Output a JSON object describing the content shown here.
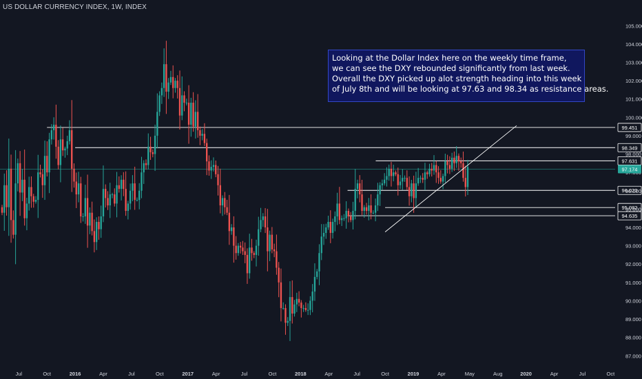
{
  "title": "US DOLLAR CURRENCY INDEX, 1W, INDEX",
  "colors": {
    "background": "#131722",
    "up": "#26a69a",
    "down": "#ef5350",
    "text": "#d1d4dc",
    "horizontal_line": "#ffffff",
    "current_price_line": "#26a69a",
    "annotation_bg": "#10175e",
    "annotation_border": "#3348c8"
  },
  "annotation": {
    "lines": [
      "Looking at the Dollar Index here on the weekly time frame,",
      "we can see the DXY rebounded significantly from last week.",
      "Overall the DXY picked up alot strength heading into this week",
      "of July 8th and will be looking at 97.63 and 98.34 as resistance areas."
    ]
  },
  "chart_data": {
    "type": "candlestick",
    "title": "US DOLLAR CURRENCY INDEX, 1W, INDEX",
    "ylim": [
      86.8,
      105.6
    ],
    "y_ticks": [
      "87.000",
      "88.000",
      "89.000",
      "90.000",
      "91.000",
      "92.000",
      "93.000",
      "94.000",
      "95.000",
      "96.000",
      "97.000",
      "98.000",
      "99.000",
      "100.000",
      "101.000",
      "102.000",
      "103.000",
      "104.000",
      "105.000"
    ],
    "x_ticks": [
      "Jul",
      "Oct",
      "2016",
      "Apr",
      "Jul",
      "Oct",
      "2017",
      "Apr",
      "Jul",
      "Oct",
      "2018",
      "Apr",
      "Jul",
      "Oct",
      "2019",
      "Apr",
      "May",
      "Aug",
      "2020",
      "Apr",
      "Jul",
      "Oct"
    ],
    "x_range": [
      "2015-05",
      "2020-11"
    ],
    "horizontal_levels": [
      {
        "label": "99.451",
        "value": 99.451,
        "from": "2015-10"
      },
      {
        "label": "98.349",
        "value": 98.349,
        "from": "2016-01"
      },
      {
        "label": "97.631",
        "value": 97.631,
        "from": "2018-09"
      },
      {
        "label": "96.020",
        "value": 96.02,
        "from": "2018-06"
      },
      {
        "label": "95.082",
        "value": 95.082,
        "from": "2018-10"
      },
      {
        "label": "94.635",
        "value": 94.635,
        "from": "2018-06"
      }
    ],
    "current_price": {
      "label": "97.174",
      "value": 97.174
    },
    "trendline": {
      "from": [
        "2018-10",
        93.75
      ],
      "to": [
        "2019-12",
        99.55
      ]
    },
    "ohlc_closes": [
      94.8,
      96.3,
      95.1,
      97.2,
      94.4,
      93.6,
      96.4,
      97.5,
      95.9,
      96.6,
      94.5,
      95.3,
      96.2,
      95.7,
      95.4,
      95.5,
      97.0,
      96.9,
      96.3,
      97.9,
      97.0,
      98.8,
      99.3,
      99.6,
      98.4,
      97.4,
      98.8,
      98.2,
      98.3,
      98.7,
      99.3,
      97.2,
      96.5,
      95.8,
      96.4,
      94.6,
      94.6,
      95.6,
      94.1,
      94.8,
      93.8,
      93.2,
      94.3,
      93.9,
      94.6,
      96.1,
      95.6,
      95.2,
      95.8,
      95.8,
      95.3,
      96.3,
      96.1,
      96.6,
      96.1,
      94.9,
      95.3,
      96.0,
      96.4,
      95.5,
      95.5,
      96.0,
      97.0,
      97.5,
      97.4,
      98.4,
      98.1,
      98.0,
      99.0,
      100.3,
      101.2,
      101.6,
      102.9,
      101.4,
      101.9,
      102.2,
      101.6,
      102.0,
      101.6,
      100.1,
      101.2,
      100.8,
      100.8,
      99.6,
      100.8,
      99.5,
      100.3,
      99.3,
      99.0,
      99.1,
      98.6,
      97.6,
      97.1,
      97.3,
      97.4,
      96.9,
      96.3,
      95.2,
      95.6,
      95.1,
      94.8,
      93.8,
      94.0,
      93.0,
      92.6,
      93.0,
      92.9,
      92.7,
      92.5,
      91.5,
      92.9,
      92.6,
      92.5,
      93.0,
      93.9,
      94.4,
      94.6,
      94.0,
      92.7,
      93.6,
      92.8,
      92.7,
      91.8,
      91.0,
      89.6,
      89.6,
      88.8,
      88.9,
      90.2,
      89.3,
      89.8,
      90.1,
      89.9,
      89.6,
      89.6,
      89.5,
      89.5,
      90.0,
      90.5,
      91.3,
      91.6,
      92.6,
      93.5,
      93.7,
      94.0,
      94.3,
      93.7,
      94.3,
      94.6,
      95.3,
      94.4,
      94.5,
      94.5,
      94.9,
      94.6,
      94.4,
      94.9,
      96.1,
      96.4,
      95.8,
      94.9,
      95.1,
      94.9,
      95.2,
      94.8,
      94.8,
      95.2,
      95.8,
      96.3,
      96.4,
      96.6,
      96.8,
      97.2,
      96.8,
      97.0,
      96.9,
      96.3,
      96.5,
      96.7,
      96.7,
      96.2,
      95.7,
      96.4,
      95.6,
      96.4,
      96.7,
      96.7,
      96.6,
      97.0,
      96.9,
      97.2,
      97.1,
      97.4,
      97.0,
      96.7,
      96.5,
      96.8,
      97.6,
      97.4,
      97.2,
      97.8,
      97.5,
      97.9,
      97.6,
      97.5,
      96.7,
      96.2,
      97.3
    ]
  }
}
